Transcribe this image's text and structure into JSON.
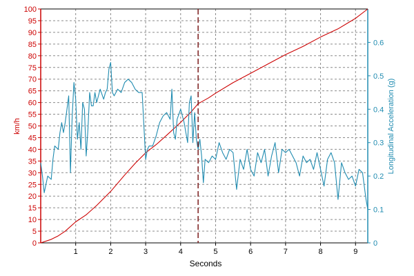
{
  "chart_data": {
    "type": "line",
    "title": "",
    "xlabel": "Seconds",
    "xlim": [
      0,
      9.35
    ],
    "x_ticks": [
      "1",
      "2",
      "3",
      "4",
      "5",
      "6",
      "7",
      "8",
      "9"
    ],
    "grid": true,
    "marker_x": 4.5,
    "y_left": {
      "label": "km/h",
      "lim": [
        0,
        100
      ],
      "ticks": [
        "0",
        "5",
        "10",
        "15",
        "20",
        "25",
        "30",
        "35",
        "40",
        "45",
        "50",
        "55",
        "60",
        "65",
        "70",
        "75",
        "80",
        "85",
        "90",
        "95",
        "100"
      ],
      "color": "#cc0000"
    },
    "y_right": {
      "label": "Longitudinal Acceleration (g)",
      "lim": [
        0,
        0.7
      ],
      "ticks": [
        "0",
        "0.1",
        "0.2",
        "0.3",
        "0.4",
        "0.5",
        "0.6"
      ],
      "color": "#1f8bb0"
    },
    "series": [
      {
        "axis": "left",
        "color": "#cc0000",
        "points": [
          [
            0,
            0
          ],
          [
            0.3,
            1.5
          ],
          [
            0.5,
            3
          ],
          [
            0.7,
            5
          ],
          [
            1,
            9
          ],
          [
            1.3,
            12
          ],
          [
            1.6,
            16
          ],
          [
            2,
            22
          ],
          [
            2.4,
            29
          ],
          [
            2.7,
            34
          ],
          [
            3,
            38.5
          ],
          [
            3.3,
            42
          ],
          [
            3.6,
            46
          ],
          [
            4,
            51.5
          ],
          [
            4.3,
            56
          ],
          [
            4.5,
            59.5
          ],
          [
            4.8,
            62
          ],
          [
            5,
            64
          ],
          [
            5.5,
            68.5
          ],
          [
            6,
            72.5
          ],
          [
            6.5,
            76.5
          ],
          [
            7,
            80.5
          ],
          [
            7.5,
            84
          ],
          [
            8,
            88
          ],
          [
            8.5,
            91.5
          ],
          [
            9,
            96
          ],
          [
            9.35,
            100
          ]
        ]
      },
      {
        "axis": "right",
        "color": "#1f8bb0",
        "points": [
          [
            0,
            0.24
          ],
          [
            0.05,
            0.2
          ],
          [
            0.1,
            0.15
          ],
          [
            0.2,
            0.2
          ],
          [
            0.3,
            0.19
          ],
          [
            0.35,
            0.25
          ],
          [
            0.4,
            0.29
          ],
          [
            0.5,
            0.28
          ],
          [
            0.55,
            0.33
          ],
          [
            0.6,
            0.36
          ],
          [
            0.65,
            0.33
          ],
          [
            0.7,
            0.36
          ],
          [
            0.8,
            0.44
          ],
          [
            0.85,
            0.21
          ],
          [
            0.9,
            0.38
          ],
          [
            0.95,
            0.48
          ],
          [
            1,
            0.43
          ],
          [
            1.05,
            0.31
          ],
          [
            1.1,
            0.36
          ],
          [
            1.15,
            0.28
          ],
          [
            1.2,
            0.42
          ],
          [
            1.25,
            0.4
          ],
          [
            1.3,
            0.26
          ],
          [
            1.35,
            0.34
          ],
          [
            1.4,
            0.45
          ],
          [
            1.45,
            0.41
          ],
          [
            1.5,
            0.41
          ],
          [
            1.55,
            0.45
          ],
          [
            1.6,
            0.42
          ],
          [
            1.7,
            0.46
          ],
          [
            1.8,
            0.43
          ],
          [
            1.85,
            0.45
          ],
          [
            1.9,
            0.46
          ],
          [
            1.95,
            0.52
          ],
          [
            2,
            0.54
          ],
          [
            2.05,
            0.45
          ],
          [
            2.1,
            0.44
          ],
          [
            2.2,
            0.46
          ],
          [
            2.3,
            0.45
          ],
          [
            2.4,
            0.48
          ],
          [
            2.5,
            0.49
          ],
          [
            2.6,
            0.48
          ],
          [
            2.7,
            0.46
          ],
          [
            2.8,
            0.45
          ],
          [
            2.9,
            0.45
          ],
          [
            3,
            0.25
          ],
          [
            3.05,
            0.28
          ],
          [
            3.1,
            0.29
          ],
          [
            3.2,
            0.29
          ],
          [
            3.3,
            0.32
          ],
          [
            3.4,
            0.36
          ],
          [
            3.5,
            0.38
          ],
          [
            3.6,
            0.39
          ],
          [
            3.7,
            0.37
          ],
          [
            3.75,
            0.46
          ],
          [
            3.8,
            0.33
          ],
          [
            3.85,
            0.31
          ],
          [
            3.9,
            0.37
          ],
          [
            4,
            0.4
          ],
          [
            4.1,
            0.36
          ],
          [
            4.2,
            0.3
          ],
          [
            4.25,
            0.42
          ],
          [
            4.3,
            0.44
          ],
          [
            4.35,
            0.3
          ],
          [
            4.4,
            0.39
          ],
          [
            4.45,
            0.31
          ],
          [
            4.5,
            0.28
          ],
          [
            4.55,
            0.31
          ],
          [
            4.6,
            0.26
          ],
          [
            4.65,
            0.18
          ],
          [
            4.7,
            0.25
          ],
          [
            4.8,
            0.24
          ],
          [
            4.9,
            0.26
          ],
          [
            5,
            0.25
          ],
          [
            5.1,
            0.3
          ],
          [
            5.2,
            0.27
          ],
          [
            5.3,
            0.25
          ],
          [
            5.4,
            0.28
          ],
          [
            5.5,
            0.27
          ],
          [
            5.6,
            0.16
          ],
          [
            5.7,
            0.25
          ],
          [
            5.8,
            0.22
          ],
          [
            5.9,
            0.28
          ],
          [
            6,
            0.22
          ],
          [
            6.1,
            0.2
          ],
          [
            6.2,
            0.27
          ],
          [
            6.3,
            0.24
          ],
          [
            6.4,
            0.28
          ],
          [
            6.5,
            0.2
          ],
          [
            6.6,
            0.26
          ],
          [
            6.7,
            0.3
          ],
          [
            6.8,
            0.21
          ],
          [
            6.9,
            0.28
          ],
          [
            7,
            0.27
          ],
          [
            7.1,
            0.28
          ],
          [
            7.2,
            0.26
          ],
          [
            7.3,
            0.24
          ],
          [
            7.4,
            0.2
          ],
          [
            7.5,
            0.26
          ],
          [
            7.6,
            0.24
          ],
          [
            7.7,
            0.25
          ],
          [
            7.8,
            0.22
          ],
          [
            7.9,
            0.27
          ],
          [
            8,
            0.22
          ],
          [
            8.1,
            0.17
          ],
          [
            8.2,
            0.25
          ],
          [
            8.3,
            0.27
          ],
          [
            8.4,
            0.24
          ],
          [
            8.5,
            0.13
          ],
          [
            8.6,
            0.24
          ],
          [
            8.7,
            0.21
          ],
          [
            8.8,
            0.19
          ],
          [
            8.9,
            0.2
          ],
          [
            9,
            0.17
          ],
          [
            9.1,
            0.22
          ],
          [
            9.2,
            0.21
          ],
          [
            9.3,
            0.13
          ],
          [
            9.35,
            0.1
          ]
        ]
      }
    ]
  }
}
